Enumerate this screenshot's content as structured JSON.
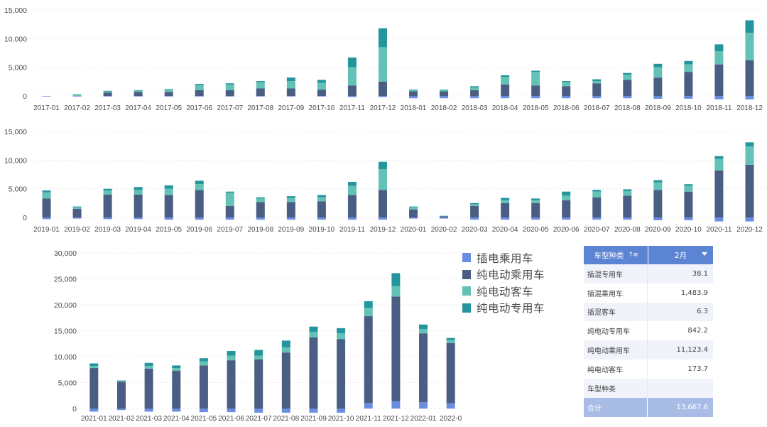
{
  "colors": {
    "plugin_passenger": "#6b8de0",
    "bev_passenger": "#4a5d82",
    "bev_bus": "#63c2b5",
    "bev_special": "#23959d"
  },
  "chart_data": [
    {
      "type": "bar",
      "stacked": true,
      "categories": [
        "2017-01",
        "2017-02",
        "2017-03",
        "2017-04",
        "2017-05",
        "2017-06",
        "2017-07",
        "2017-08",
        "2017-09",
        "2017-10",
        "2017-11",
        "2017-12",
        "2018-01",
        "2018-02",
        "2018-03",
        "2018-04",
        "2018-05",
        "2018-06",
        "2018-07",
        "2018-08",
        "2018-09",
        "2018-10",
        "2018-11",
        "2018-12"
      ],
      "yticks": [
        0,
        5000,
        10000,
        15000
      ],
      "ytick_labels": [
        "0",
        "5,000",
        "10,000",
        "15,000"
      ],
      "ylim": [
        -1000,
        15000
      ],
      "grid": true,
      "series": [
        {
          "values": [
            -100,
            -100,
            -100,
            -100,
            -100,
            -100,
            -100,
            -100,
            -100,
            -100,
            -200,
            -200,
            -400,
            -400,
            -400,
            -400,
            -400,
            -400,
            -400,
            -400,
            -500,
            -500,
            -600,
            -600
          ]
        },
        {
          "values": [
            0,
            0,
            600,
            700,
            700,
            1000,
            1000,
            1300,
            1300,
            1100,
            1800,
            2500,
            800,
            800,
            1000,
            2000,
            1800,
            1700,
            2200,
            2800,
            3200,
            4200,
            5500,
            6200
          ]
        },
        {
          "values": [
            0,
            300,
            200,
            200,
            400,
            900,
            1000,
            1100,
            1300,
            1200,
            3200,
            6000,
            200,
            200,
            500,
            1300,
            2400,
            700,
            400,
            900,
            1800,
            1300,
            2300,
            4800
          ]
        },
        {
          "values": [
            0,
            0,
            100,
            100,
            100,
            200,
            200,
            200,
            600,
            500,
            1700,
            3300,
            100,
            100,
            200,
            300,
            200,
            200,
            300,
            300,
            600,
            600,
            1200,
            2200
          ]
        }
      ]
    },
    {
      "type": "bar",
      "stacked": true,
      "categories": [
        "2019-01",
        "2019-02",
        "2019-03",
        "2019-04",
        "2019-05",
        "2019-06",
        "2019-07",
        "2019-08",
        "2019-09",
        "2019-10",
        "2019-11",
        "2019-12",
        "2020-01",
        "2020-02",
        "2020-03",
        "2020-04",
        "2020-05",
        "2020-06",
        "2020-07",
        "2020-08",
        "2020-09",
        "2020-10",
        "2020-11",
        "2020-12"
      ],
      "yticks": [
        0,
        5000,
        10000,
        15000
      ],
      "ytick_labels": [
        "0",
        "5,000",
        "10,000",
        "15,000"
      ],
      "ylim": [
        -1000,
        15000
      ],
      "grid": true,
      "series": [
        {
          "values": [
            -300,
            -200,
            -300,
            -300,
            -400,
            -400,
            -400,
            -400,
            -400,
            -400,
            -400,
            -400,
            -200,
            -200,
            -400,
            -400,
            -400,
            -400,
            -400,
            -400,
            -500,
            -500,
            -700,
            -700
          ]
        },
        {
          "values": [
            3300,
            1500,
            4000,
            4000,
            3900,
            4800,
            2000,
            2700,
            2700,
            2800,
            3900,
            4800,
            1400,
            200,
            2000,
            2500,
            2500,
            3000,
            3500,
            3800,
            4800,
            4500,
            8200,
            9200
          ]
        },
        {
          "values": [
            1100,
            300,
            700,
            800,
            1100,
            1000,
            2300,
            600,
            700,
            700,
            1600,
            3600,
            400,
            100,
            300,
            500,
            500,
            800,
            1000,
            800,
            1300,
            1000,
            2000,
            3200
          ]
        },
        {
          "values": [
            300,
            100,
            300,
            500,
            600,
            600,
            200,
            200,
            300,
            400,
            700,
            1300,
            100,
            0,
            200,
            400,
            300,
            700,
            300,
            300,
            400,
            300,
            500,
            700
          ]
        }
      ]
    },
    {
      "type": "bar",
      "stacked": true,
      "categories": [
        "2021-01",
        "2021-02",
        "2021-03",
        "2021-04",
        "2021-05",
        "2021-06",
        "2021-07",
        "2021-08",
        "2021-09",
        "2021-10",
        "2021-11",
        "2021-12",
        "2022-01",
        "2022-0"
      ],
      "yticks": [
        0,
        5000,
        10000,
        15000,
        20000,
        25000,
        30000
      ],
      "ytick_labels": [
        "0",
        "5,000",
        "10,000",
        "15,000",
        "20,000",
        "25,000",
        "30,000"
      ],
      "ylim": [
        -1000,
        30000
      ],
      "grid": true,
      "legend": {
        "position": "top-right",
        "labels": [
          "插电乘用车",
          "纯电动乘用车",
          "纯电动客车",
          "纯电动专用车"
        ]
      },
      "series": [
        {
          "name": "插电乘用车",
          "values": [
            -600,
            -300,
            -600,
            -600,
            -700,
            -700,
            -800,
            -800,
            -800,
            -800,
            1100,
            1400,
            1200,
            1000
          ]
        },
        {
          "name": "纯电动乘用车",
          "values": [
            7800,
            5100,
            7700,
            7300,
            8300,
            9300,
            9500,
            10800,
            13700,
            13400,
            16700,
            20200,
            13300,
            11600
          ]
        },
        {
          "name": "纯电动客车",
          "values": [
            400,
            100,
            500,
            500,
            800,
            900,
            700,
            1000,
            1100,
            1100,
            1600,
            2000,
            800,
            600
          ]
        },
        {
          "name": "纯电动专用车",
          "values": [
            500,
            200,
            600,
            500,
            600,
            900,
            1100,
            1300,
            1000,
            1000,
            1300,
            2500,
            900,
            400
          ]
        }
      ]
    }
  ],
  "table": {
    "header": {
      "category": "车型种类",
      "month": "2月"
    },
    "rows": [
      {
        "name": "插混专用车",
        "value": "38.1"
      },
      {
        "name": "插混乘用车",
        "value": "1,483.9"
      },
      {
        "name": "插混客车",
        "value": "6.3"
      },
      {
        "name": "纯电动专用车",
        "value": "842.2"
      },
      {
        "name": "纯电动乘用车",
        "value": "11,123.4"
      },
      {
        "name": "纯电动客车",
        "value": "173.7"
      },
      {
        "name": "车型种类",
        "value": ""
      }
    ],
    "total": {
      "name": "合计",
      "value": "13,667.6"
    }
  }
}
